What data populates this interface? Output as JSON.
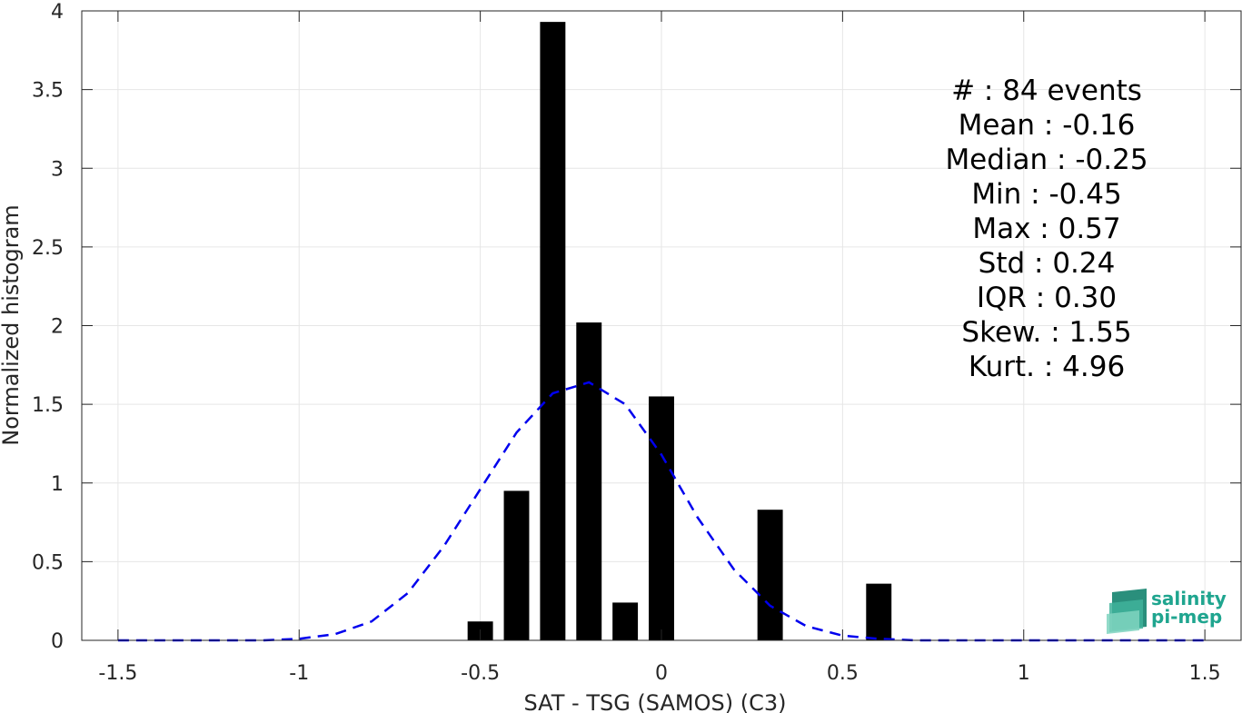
{
  "chart_data": {
    "type": "bar",
    "xlabel": "SAT - TSG (SAMOS) (C3)",
    "ylabel": "Normalized histogram",
    "xlim": [
      -1.6,
      1.6
    ],
    "ylim": [
      0,
      4
    ],
    "x_ticks": [
      "-1.5",
      "-1",
      "-0.5",
      "0",
      "0.5",
      "1",
      "1.5"
    ],
    "y_ticks": [
      "0",
      "0.5",
      "1",
      "1.5",
      "2",
      "2.5",
      "3",
      "3.5",
      "4"
    ],
    "grid": true,
    "bar_width": 0.07,
    "bars": [
      {
        "x": -0.5,
        "y": 0.12
      },
      {
        "x": -0.4,
        "y": 0.95
      },
      {
        "x": -0.3,
        "y": 3.93
      },
      {
        "x": -0.2,
        "y": 2.02
      },
      {
        "x": -0.1,
        "y": 0.24
      },
      {
        "x": 0.0,
        "y": 1.55
      },
      {
        "x": 0.3,
        "y": 0.83
      },
      {
        "x": 0.6,
        "y": 0.36
      }
    ],
    "gaussian_fit": {
      "style": "dashed",
      "color": "#0000ee",
      "x": [
        -1.5,
        -1.4,
        -1.3,
        -1.2,
        -1.1,
        -1.0,
        -0.9,
        -0.8,
        -0.7,
        -0.6,
        -0.5,
        -0.4,
        -0.3,
        -0.2,
        -0.1,
        0.0,
        0.1,
        0.2,
        0.3,
        0.4,
        0.5,
        0.6,
        0.7,
        0.8,
        0.9,
        1.0,
        1.1,
        1.2,
        1.3,
        1.4,
        1.5
      ],
      "y": [
        0.0,
        0.0,
        0.0,
        0.0,
        0.0,
        0.01,
        0.04,
        0.12,
        0.3,
        0.6,
        0.96,
        1.32,
        1.57,
        1.64,
        1.5,
        1.18,
        0.78,
        0.45,
        0.22,
        0.09,
        0.03,
        0.01,
        0.0,
        0.0,
        0.0,
        0.0,
        0.0,
        0.0,
        0.0,
        0.0,
        0.0
      ]
    },
    "annotation": [
      "#  : 84 events",
      "Mean : -0.16",
      "Median : -0.25",
      "Min : -0.45",
      "Max : 0.57",
      "Std : 0.24",
      "IQR : 0.30",
      "Skew. : 1.55",
      "Kurt. : 4.96"
    ],
    "colors": {
      "bars": "#000000",
      "fit": "#0000ee",
      "grid": "#e6e6e6",
      "axis": "#262626"
    }
  },
  "logo": {
    "line1": "salinity",
    "line2": "pi-mep",
    "color": "#1fa58f"
  }
}
